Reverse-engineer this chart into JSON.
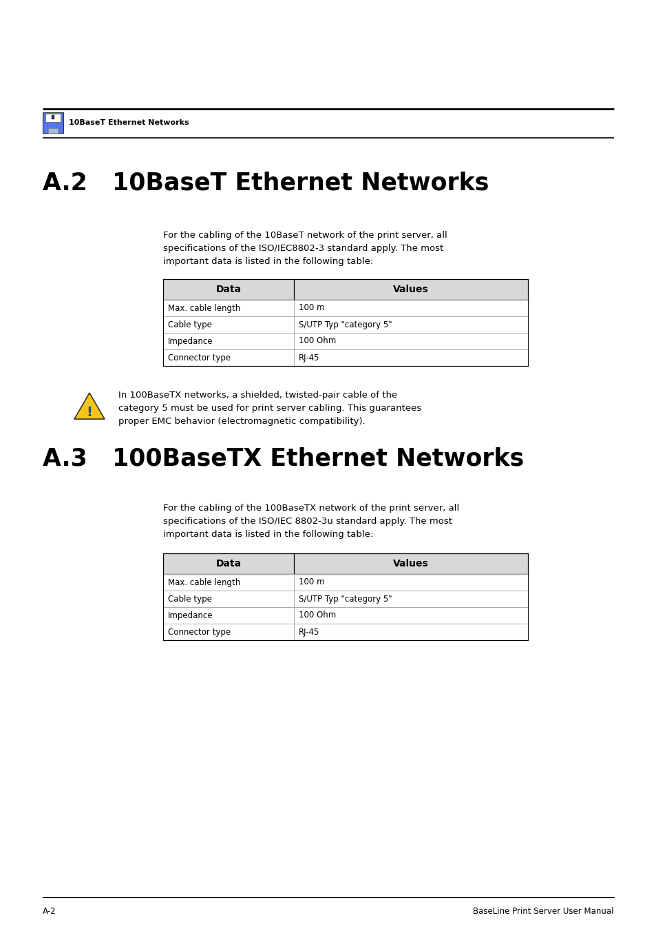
{
  "page_bg": "#ffffff",
  "header_icon_label": "10BaseT Ethernet Networks",
  "section1_title": "A.2   10BaseT Ethernet Networks",
  "section1_intro": "For the cabling of the 10BaseT network of the print server, all\nspecifications of the ISO/IEC8802-3 standard apply. The most\nimportant data is listed in the following table:",
  "table1_header": [
    "Data",
    "Values"
  ],
  "table1_rows": [
    [
      "Max. cable length",
      "100 m"
    ],
    [
      "Cable type",
      "S/UTP Typ \"category 5\""
    ],
    [
      "Impedance",
      "100 Ohm"
    ],
    [
      "Connector type",
      "RJ-45"
    ]
  ],
  "warning_text": "In 100BaseTX networks, a shielded, twisted-pair cable of the\ncategory 5 must be used for print server cabling. This guarantees\nproper EMC behavior (electromagnetic compatibility).",
  "section2_title": "A.3   100BaseTX Ethernet Networks",
  "section2_intro": "For the cabling of the 100BaseTX network of the print server, all\nspecifications of the ISO/IEC 8802-3u standard apply. The most\nimportant data is listed in the following table:",
  "table2_header": [
    "Data",
    "Values"
  ],
  "table2_rows": [
    [
      "Max. cable length",
      "100 m"
    ],
    [
      "Cable type",
      "S/UTP Typ \"category 5\""
    ],
    [
      "Impedance",
      "100 Ohm"
    ],
    [
      "Connector type",
      "RJ-45"
    ]
  ],
  "footer_left": "A-2",
  "footer_right": "BaseLine Print Server User Manual",
  "table_header_bg": "#d8d8d8",
  "table_border_color": "#000000",
  "table_row_line_color": "#aaaaaa",
  "text_color": "#000000"
}
